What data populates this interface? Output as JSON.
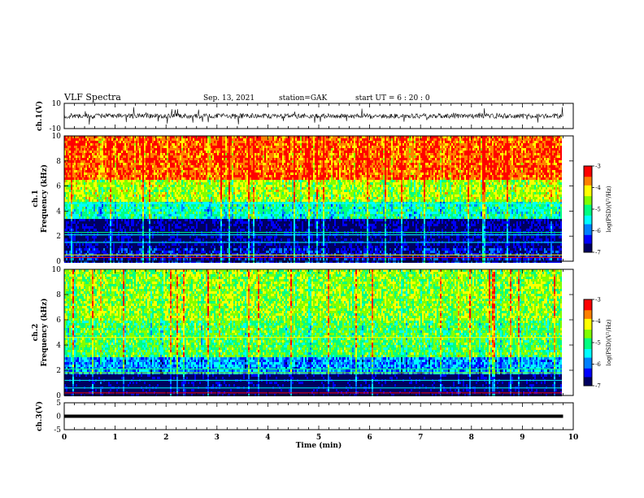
{
  "header": {
    "title": "VLF Spectra",
    "date": "Sep. 13, 2021",
    "station": "station=GAK",
    "start": "start  UT =  6 : 20 : 0"
  },
  "colors": {
    "scale": [
      "#000060",
      "#0000ff",
      "#0080ff",
      "#00ffff",
      "#00ff80",
      "#80ff00",
      "#ffff00",
      "#ff8000",
      "#ff0000",
      "#ffffff"
    ]
  },
  "chart_data": [
    {
      "type": "line",
      "name": "ch1-waveform",
      "ylabel": "ch.1(V)",
      "ylim": [
        -10,
        10
      ],
      "yticks": [
        "10",
        "-10"
      ],
      "xlim": [
        0,
        10
      ]
    },
    {
      "type": "heatmap",
      "name": "ch1-spectrogram",
      "ylabel": "ch.1\nFrequency (kHz)",
      "ylabel_lines": [
        "ch.1",
        "Frequency (kHz)"
      ],
      "ylim": [
        0,
        10
      ],
      "yticks": [
        "0",
        "2",
        "4",
        "6",
        "8",
        "10"
      ],
      "xlim": [
        0,
        10
      ],
      "colorbar": {
        "label": "log(PSD)(V²/Hz)",
        "range": [
          -7,
          -3
        ],
        "ticks": [
          "-3",
          "-4",
          "-5",
          "-6",
          "-7"
        ]
      },
      "bands": [
        {
          "from": 0,
          "to": 1.2,
          "level": 0.15
        },
        {
          "from": 1.2,
          "to": 3.5,
          "level": 0.08
        },
        {
          "from": 3.5,
          "to": 4.8,
          "level": 0.45
        },
        {
          "from": 4.8,
          "to": 6.5,
          "level": 0.65
        },
        {
          "from": 6.5,
          "to": 10,
          "level": 0.88
        }
      ]
    },
    {
      "type": "heatmap",
      "name": "ch2-spectrogram",
      "ylabel": "ch.2\nFrequency (kHz)",
      "ylabel_lines": [
        "ch.2",
        "Frequency (kHz)"
      ],
      "ylim": [
        0,
        10
      ],
      "yticks": [
        "0",
        "2",
        "4",
        "6",
        "8",
        "10"
      ],
      "xlim": [
        0,
        10
      ],
      "colorbar": {
        "label": "log(PSD)(V²/Hz)",
        "range": [
          -7,
          -3
        ],
        "ticks": [
          "-3",
          "-4",
          "-5",
          "-6",
          "-7"
        ]
      },
      "bands": [
        {
          "from": 0,
          "to": 1.8,
          "level": 0.02
        },
        {
          "from": 1.8,
          "to": 3.2,
          "level": 0.3
        },
        {
          "from": 3.2,
          "to": 6,
          "level": 0.55
        },
        {
          "from": 6,
          "to": 10,
          "level": 0.62
        }
      ]
    },
    {
      "type": "line",
      "name": "ch3-trace",
      "ylabel": "ch.3(V)",
      "ylim": [
        -5,
        5
      ],
      "yticks": [
        "5",
        "0",
        "-5"
      ],
      "x": [
        0,
        9.8
      ],
      "y": [
        0,
        0
      ],
      "xlabel": "Time (min)",
      "xticks": [
        "0",
        "1",
        "2",
        "3",
        "4",
        "5",
        "6",
        "7",
        "8",
        "9",
        "10"
      ]
    }
  ]
}
